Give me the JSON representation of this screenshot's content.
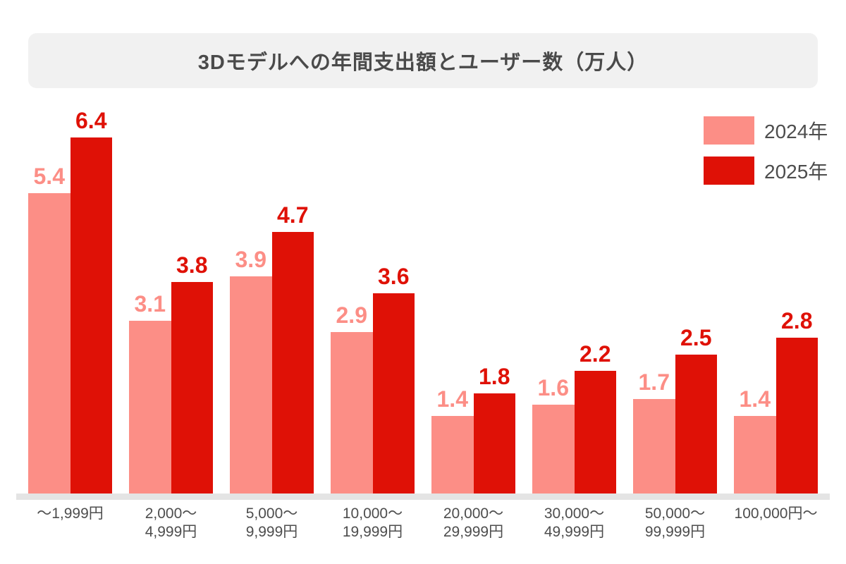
{
  "title": "3Dモデルへの年間支出額とユーザー数（万人）",
  "colors": {
    "series_2024": "#FC8E86",
    "series_2025": "#DF1106",
    "title_bg": "#F1F1F1",
    "title_text": "#4A4A4A",
    "axis_text": "#4D4D4D",
    "baseline": "#E4E4E4",
    "background": "#FFFFFF"
  },
  "chart_data": {
    "type": "bar",
    "title": "3Dモデルへの年間支出額とユーザー数（万人）",
    "categories": [
      "～1,999円",
      "2,000～\n4,999円",
      "5,000～\n9,999円",
      "10,000～\n19,999円",
      "20,000～\n29,999円",
      "30,000～\n49,999円",
      "50,000～\n99,999円",
      "100,000円～"
    ],
    "series": [
      {
        "name": "2024年",
        "color": "#FC8E86",
        "values": [
          5.4,
          3.1,
          3.9,
          2.9,
          1.4,
          1.6,
          1.7,
          1.4
        ]
      },
      {
        "name": "2025年",
        "color": "#DF1106",
        "values": [
          6.4,
          3.8,
          4.7,
          3.6,
          1.8,
          2.2,
          2.5,
          2.8
        ]
      }
    ],
    "xlabel": "",
    "ylabel": "",
    "ymax": 6.4,
    "grid": false,
    "value_labels": true,
    "legend_position": "top-right"
  }
}
